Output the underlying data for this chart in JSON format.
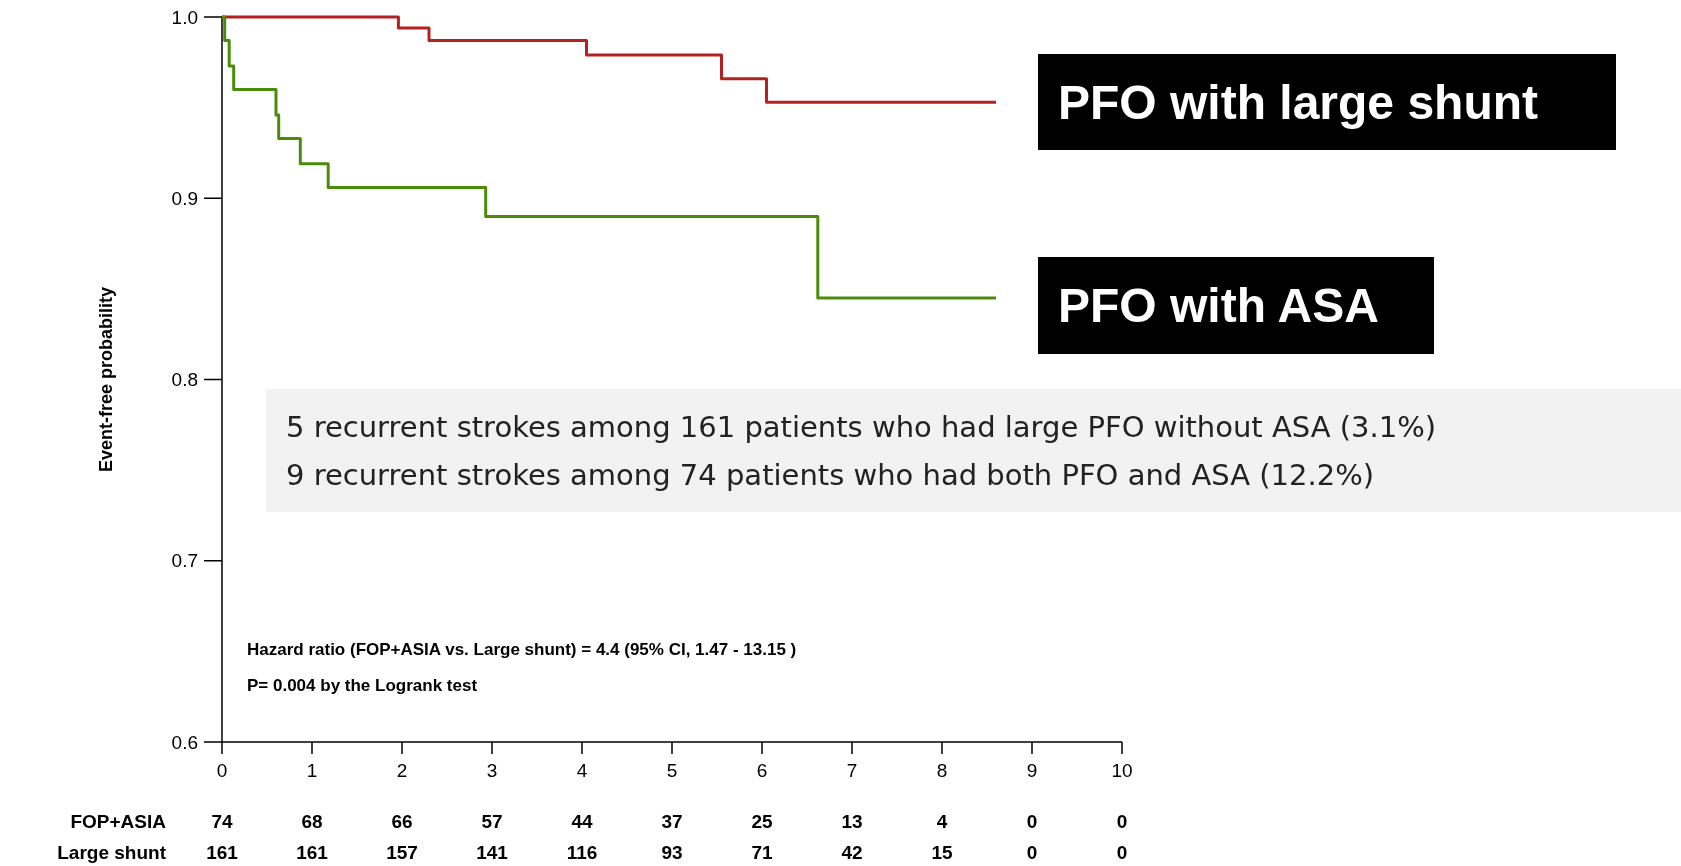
{
  "chart_data": {
    "type": "step",
    "ylabel": "Event-free probability",
    "xlim": [
      0,
      10
    ],
    "xticks": [
      0,
      1,
      2,
      3,
      4,
      5,
      6,
      7,
      8,
      9,
      10
    ],
    "ylim": [
      0.6,
      1.0
    ],
    "yticks": [
      0.6,
      0.7,
      0.8,
      0.9,
      {
        "value": 1.0,
        "label": "1.0"
      }
    ],
    "grid": false,
    "series": [
      {
        "name": "PFO with large shunt",
        "color": "#b22222",
        "x": [
          0,
          1.96,
          2.3,
          4.05,
          5.55,
          6.05,
          8.6
        ],
        "values": [
          1.0,
          0.994,
          0.987,
          0.979,
          0.966,
          0.953,
          0.953
        ]
      },
      {
        "name": "PFO with ASA",
        "color": "#4a8c0a",
        "x": [
          0,
          0.03,
          0.08,
          0.13,
          0.6,
          0.63,
          0.87,
          1.18,
          2.93,
          6.62,
          8.6
        ],
        "values": [
          1.0,
          0.987,
          0.973,
          0.96,
          0.946,
          0.933,
          0.919,
          0.906,
          0.89,
          0.845,
          0.845
        ]
      }
    ],
    "annotations": [
      "Hazard ratio (FOP+ASIA vs. Large shunt) = 4.4 (95% CI, 1.47 - 13.15 )",
      "P= 0.004 by the Logrank test",
      "5 recurrent strokes among 161 patients who had large PFO without ASA (3.1%)",
      "9 recurrent strokes among 74 patients who had both PFO and ASA (12.2%)",
      "FOP+ASIA",
      "74",
      "68",
      "66",
      "57",
      "44",
      "37",
      "25",
      "13",
      "4",
      "0",
      "0",
      "Large shunt",
      "161",
      "161",
      "157",
      "141",
      "116",
      "93",
      "71",
      "42",
      "15",
      "0",
      "0"
    ]
  }
}
